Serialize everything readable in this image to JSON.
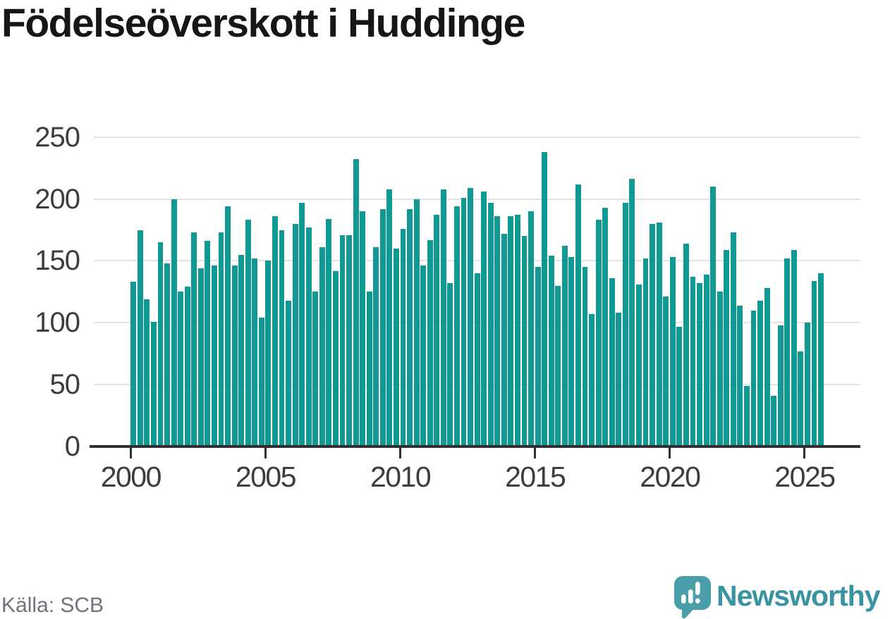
{
  "header": {
    "title": "Födelseöverskott i Huddinge"
  },
  "footer": {
    "source": "Källa: SCB",
    "brand_name": "Newsworthy"
  },
  "colors": {
    "bar": "#0e9a93",
    "gridline": "#e3e3e3",
    "axis_line": "#2f2f2f",
    "axis_text": "#3d3d3d",
    "title_text": "#161616",
    "source_text": "#70737a",
    "brand_text": "#3a93a1",
    "brand_icon": "#4a9ea9",
    "brand_icon_dark": "#3e8e99"
  },
  "chart_data": {
    "type": "bar",
    "title": "Födelseöverskott i Huddinge",
    "x_start": "2000-Q1",
    "x_interval": "quarterly",
    "x_tick_labels": [
      "2000",
      "2005",
      "2010",
      "2015",
      "2020",
      "2025"
    ],
    "x_tick_indices": [
      0,
      20,
      40,
      60,
      80,
      100
    ],
    "y_ticks": [
      0,
      50,
      100,
      150,
      200,
      250
    ],
    "ylim": [
      0,
      250
    ],
    "grid": "horizontal",
    "legend": "none",
    "values": [
      133,
      175,
      119,
      101,
      165,
      148,
      200,
      125,
      129,
      173,
      144,
      166,
      146,
      173,
      194,
      146,
      155,
      183,
      152,
      104,
      150,
      186,
      175,
      118,
      180,
      197,
      177,
      125,
      161,
      184,
      142,
      171,
      171,
      232,
      190,
      125,
      161,
      192,
      208,
      160,
      176,
      192,
      200,
      146,
      167,
      187,
      208,
      132,
      194,
      201,
      209,
      140,
      206,
      197,
      186,
      172,
      186,
      187,
      170,
      190,
      145,
      238,
      154,
      130,
      162,
      153,
      212,
      145,
      107,
      183,
      193,
      136,
      108,
      197,
      216,
      131,
      152,
      180,
      181,
      121,
      153,
      97,
      164,
      137,
      132,
      139,
      210,
      125,
      159,
      173,
      114,
      49,
      110,
      118,
      128,
      41,
      98,
      152,
      159,
      77,
      100,
      134,
      140
    ]
  }
}
